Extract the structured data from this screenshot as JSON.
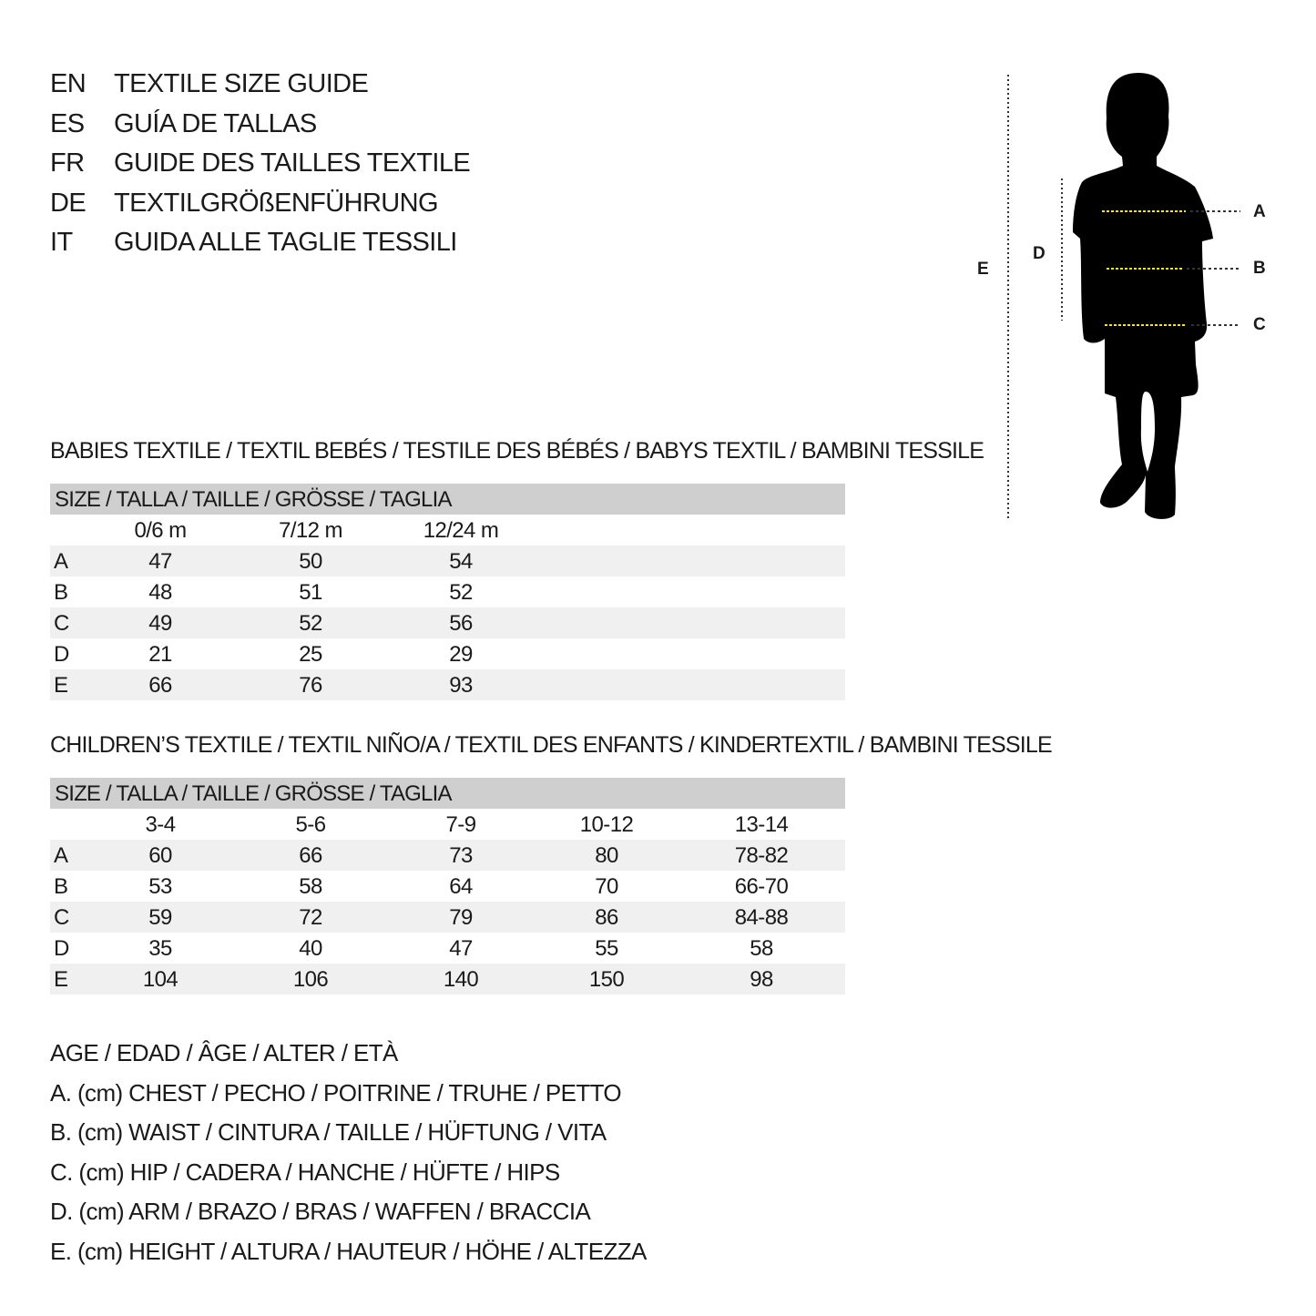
{
  "titles": [
    {
      "code": "EN",
      "text": "TEXTILE SIZE GUIDE"
    },
    {
      "code": "ES",
      "text": "GUÍA DE TALLAS"
    },
    {
      "code": "FR",
      "text": "GUIDE DES TAILLES TEXTILE"
    },
    {
      "code": "DE",
      "text": "TEXTILGRÖßENFÜHRUNG"
    },
    {
      "code": "IT",
      "text": "GUIDA ALLE TAGLIE TESSILI"
    }
  ],
  "figure": {
    "labels": {
      "A": "A",
      "B": "B",
      "C": "C",
      "D": "D",
      "E": "E"
    },
    "guide_color": "#f2e04a"
  },
  "babies": {
    "title": "BABIES TEXTILE / TEXTIL BEBÉS / TESTILE DES BÉBÉS / BABYS TEXTIL / BAMBINI TESSILE",
    "header": "SIZE / TALLA / TAILLE / GRÖSSE / TAGLIA",
    "columns": [
      "0/6 m",
      "7/12 m",
      "12/24 m"
    ],
    "rows": [
      {
        "label": "A",
        "values": [
          "47",
          "50",
          "54"
        ]
      },
      {
        "label": "B",
        "values": [
          "48",
          "51",
          "52"
        ]
      },
      {
        "label": "C",
        "values": [
          "49",
          "52",
          "56"
        ]
      },
      {
        "label": "D",
        "values": [
          "21",
          "25",
          "29"
        ]
      },
      {
        "label": "E",
        "values": [
          "66",
          "76",
          "93"
        ]
      }
    ]
  },
  "children": {
    "title": "CHILDREN’S TEXTILE / TEXTIL NIÑO/A / TEXTIL DES ENFANTS / KINDERTEXTIL / BAMBINI TESSILE",
    "header": "SIZE / TALLA / TAILLE / GRÖSSE / TAGLIA",
    "columns": [
      "3-4",
      "5-6",
      "7-9",
      "10-12",
      "13-14"
    ],
    "rows": [
      {
        "label": "A",
        "values": [
          "60",
          "66",
          "73",
          "80",
          "78-82"
        ]
      },
      {
        "label": "B",
        "values": [
          "53",
          "58",
          "64",
          "70",
          "66-70"
        ]
      },
      {
        "label": "C",
        "values": [
          "59",
          "72",
          "79",
          "86",
          "84-88"
        ]
      },
      {
        "label": "D",
        "values": [
          "35",
          "40",
          "47",
          "55",
          "58"
        ]
      },
      {
        "label": "E",
        "values": [
          "104",
          "106",
          "140",
          "150",
          "98"
        ]
      }
    ]
  },
  "legend": [
    "AGE / EDAD / ÂGE / ALTER / ETÀ",
    "A. (cm) CHEST / PECHO / POITRINE / TRUHE / PETTO",
    "B. (cm) WAIST / CINTURA / TAILLE / HÜFTUNG / VITA",
    "C. (cm) HIP / CADERA / HANCHE / HÜFTE / HIPS",
    "D. (cm) ARM / BRAZO / BRAS / WAFFEN / BRACCIA",
    "E. (cm) HEIGHT / ALTURA / HAUTEUR / HÖHE / ALTEZZA"
  ]
}
